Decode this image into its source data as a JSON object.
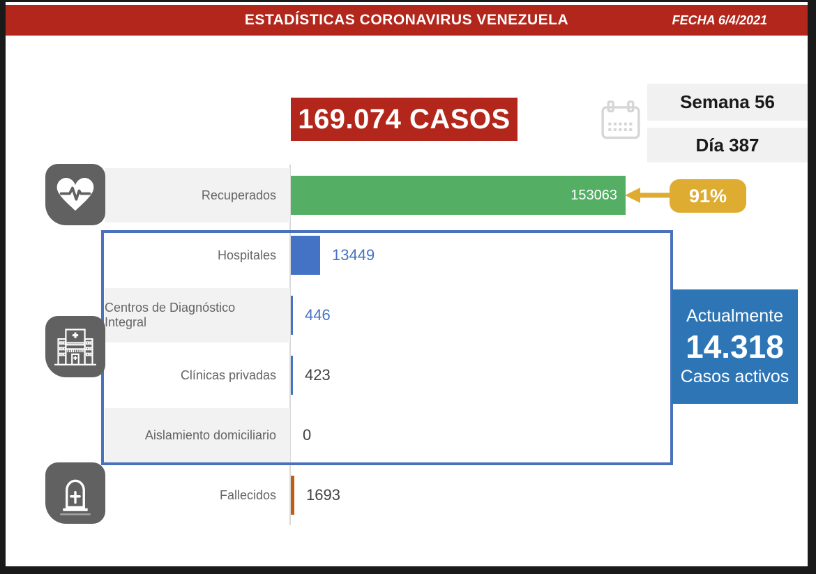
{
  "banner": {
    "title": "ESTADÍSTICAS CORONAVIRUS VENEZUELA",
    "date": "FECHA 6/4/2021"
  },
  "summary": {
    "total_cases": "169.074 CASOS",
    "week": "Semana 56",
    "day": "Día 387"
  },
  "recovered_badge": {
    "percent": "91%"
  },
  "active_box": {
    "label_top": "Actualmente",
    "value": "14.318",
    "label_bottom": "Casos activos"
  },
  "icons": {
    "recovered": "heart-pulse-icon",
    "hospitalization": "hospital-building-icon",
    "deaths": "tombstone-icon",
    "date": "calendar-icon"
  },
  "colors": {
    "red": "#B2261B",
    "green": "#54AE63",
    "gold": "#DFAC32",
    "blueBar": "#4472C4",
    "blueBox": "#2E75B6",
    "blueBorder": "#4A72BC",
    "orange": "#C55A11",
    "tile": "#616161",
    "band": "#F2F2F2",
    "calendarIcon": "#D6D6D6"
  },
  "chart_data": {
    "type": "bar",
    "orientation": "horizontal",
    "title": "Estadísticas Coronavirus Venezuela 6/4/2021",
    "categories": [
      "Recuperados",
      "Hospitales",
      "Centros de Diagnóstico Integral",
      "Clínicas privadas",
      "Aislamiento domiciliario",
      "Fallecidos"
    ],
    "values": [
      153063,
      13449,
      446,
      423,
      0,
      1693
    ],
    "value_labels": [
      "153063",
      "13449",
      "446",
      "423",
      "0",
      "1693"
    ],
    "bar_colors": [
      "#54AE63",
      "#4472C4",
      "#4472C4",
      "#4472C4",
      "none",
      "#C55A11"
    ],
    "value_text_colors": [
      "#FFFFFF",
      "#4472C4",
      "#4472C4",
      "#404040",
      "#404040",
      "#404040"
    ],
    "value_inside": [
      true,
      false,
      false,
      false,
      false,
      false
    ],
    "row_shaded": [
      true,
      false,
      true,
      false,
      true,
      false
    ],
    "xlim": [
      0,
      153063
    ],
    "grid": false,
    "legend": false,
    "annotations": [
      {
        "target": "Recuperados",
        "text": "91%"
      },
      {
        "group": [
          "Hospitales",
          "Centros de Diagnóstico Integral",
          "Clínicas privadas",
          "Aislamiento domiciliario"
        ],
        "text": "Actualmente 14.318 Casos activos"
      }
    ]
  }
}
